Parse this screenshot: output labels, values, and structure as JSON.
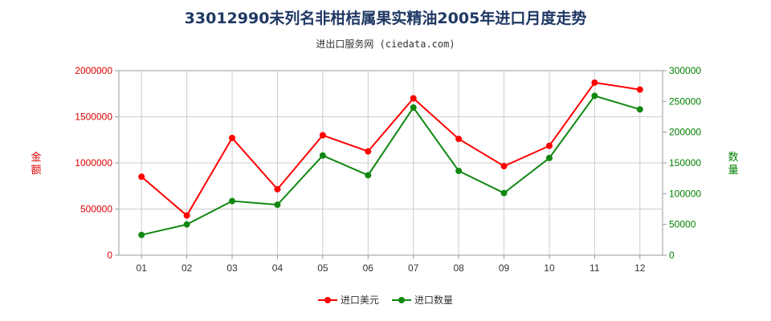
{
  "chart_data": {
    "type": "line",
    "title": "33012990未列名非柑桔属果实精油2005年进口月度走势",
    "subtitle": "进出口服务网 (ciedata.com)",
    "categories": [
      "01",
      "02",
      "03",
      "04",
      "05",
      "06",
      "07",
      "08",
      "09",
      "10",
      "11",
      "12"
    ],
    "left_axis": {
      "label": "金额",
      "ylim": [
        0,
        2000000
      ],
      "ticks": [
        "0",
        "500000",
        "1000000",
        "1500000",
        "2000000"
      ],
      "color": "#dd0000"
    },
    "right_axis": {
      "label": "数量",
      "ylim": [
        0,
        300000
      ],
      "ticks": [
        "0",
        "50000",
        "100000",
        "150000",
        "200000",
        "250000",
        "300000"
      ],
      "color": "#008000"
    },
    "series": [
      {
        "name": "进口美元",
        "axis": "left",
        "color": "#ff0000",
        "values": [
          850000,
          430000,
          1270000,
          715000,
          1300000,
          1125000,
          1700000,
          1260000,
          965000,
          1185000,
          1870000,
          1795000
        ]
      },
      {
        "name": "进口数量",
        "axis": "right",
        "color": "#118811",
        "values": [
          33000,
          50000,
          88000,
          82000,
          162000,
          130000,
          240000,
          137000,
          101000,
          158000,
          259000,
          237000
        ]
      }
    ],
    "grid": true,
    "legend": "bottom"
  }
}
